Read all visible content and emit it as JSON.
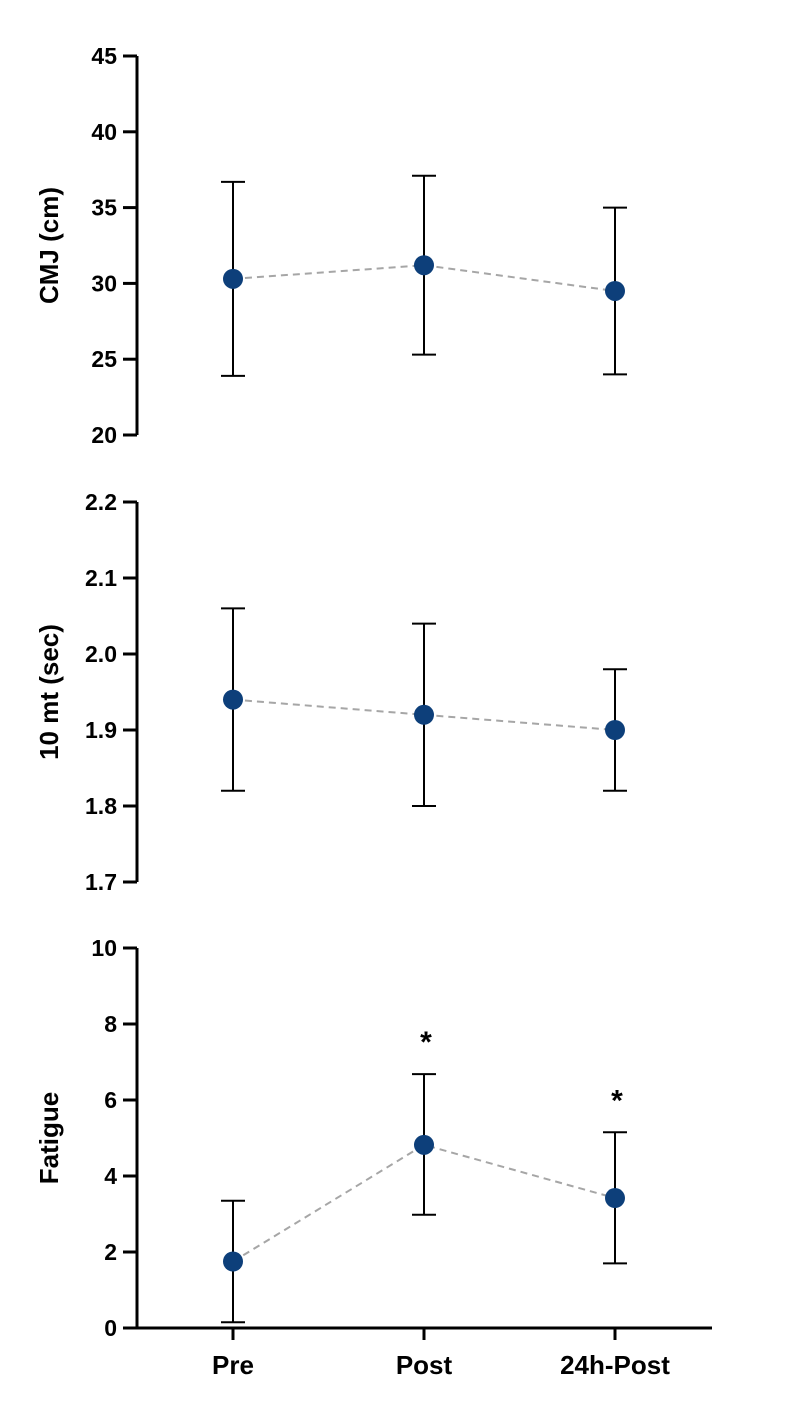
{
  "colors": {
    "marker": "#0d3f7a",
    "connector": "#a6a6a6",
    "axis": "#000000"
  },
  "chart_data": [
    {
      "type": "line",
      "ylabel": "CMJ (cm)",
      "categories": [
        "Pre",
        "Post",
        "24h-Post"
      ],
      "ylim": [
        20,
        45
      ],
      "yticks": [
        20,
        25,
        30,
        35,
        40,
        45
      ],
      "series": [
        {
          "values": [
            30.3,
            31.2,
            29.5
          ],
          "err_low": [
            23.9,
            25.3,
            24.0
          ],
          "err_high": [
            36.7,
            37.1,
            35.0
          ]
        }
      ],
      "annotations": [
        "",
        "",
        ""
      ],
      "show_xlabels": false
    },
    {
      "type": "line",
      "ylabel": "10 mt (sec)",
      "categories": [
        "Pre",
        "Post",
        "24h-Post"
      ],
      "ylim": [
        1.7,
        2.2
      ],
      "yticks": [
        "1.7",
        "1.8",
        "1.9",
        "2.0",
        "2.1",
        "2.2"
      ],
      "series": [
        {
          "values": [
            1.94,
            1.92,
            1.9
          ],
          "err_low": [
            1.82,
            1.8,
            1.82
          ],
          "err_high": [
            2.06,
            2.04,
            1.98
          ]
        }
      ],
      "annotations": [
        "",
        "",
        ""
      ],
      "show_xlabels": false
    },
    {
      "type": "line",
      "ylabel": "Fatigue",
      "categories": [
        "Pre",
        "Post",
        "24h-Post"
      ],
      "ylim": [
        0,
        10
      ],
      "yticks": [
        0,
        2,
        4,
        6,
        8,
        10
      ],
      "series": [
        {
          "values": [
            1.75,
            4.82,
            3.42
          ],
          "err_low": [
            0.15,
            2.98,
            1.7
          ],
          "err_high": [
            3.35,
            6.68,
            5.15
          ]
        }
      ],
      "annotations": [
        "",
        "*",
        "*"
      ],
      "show_xlabels": true
    }
  ]
}
